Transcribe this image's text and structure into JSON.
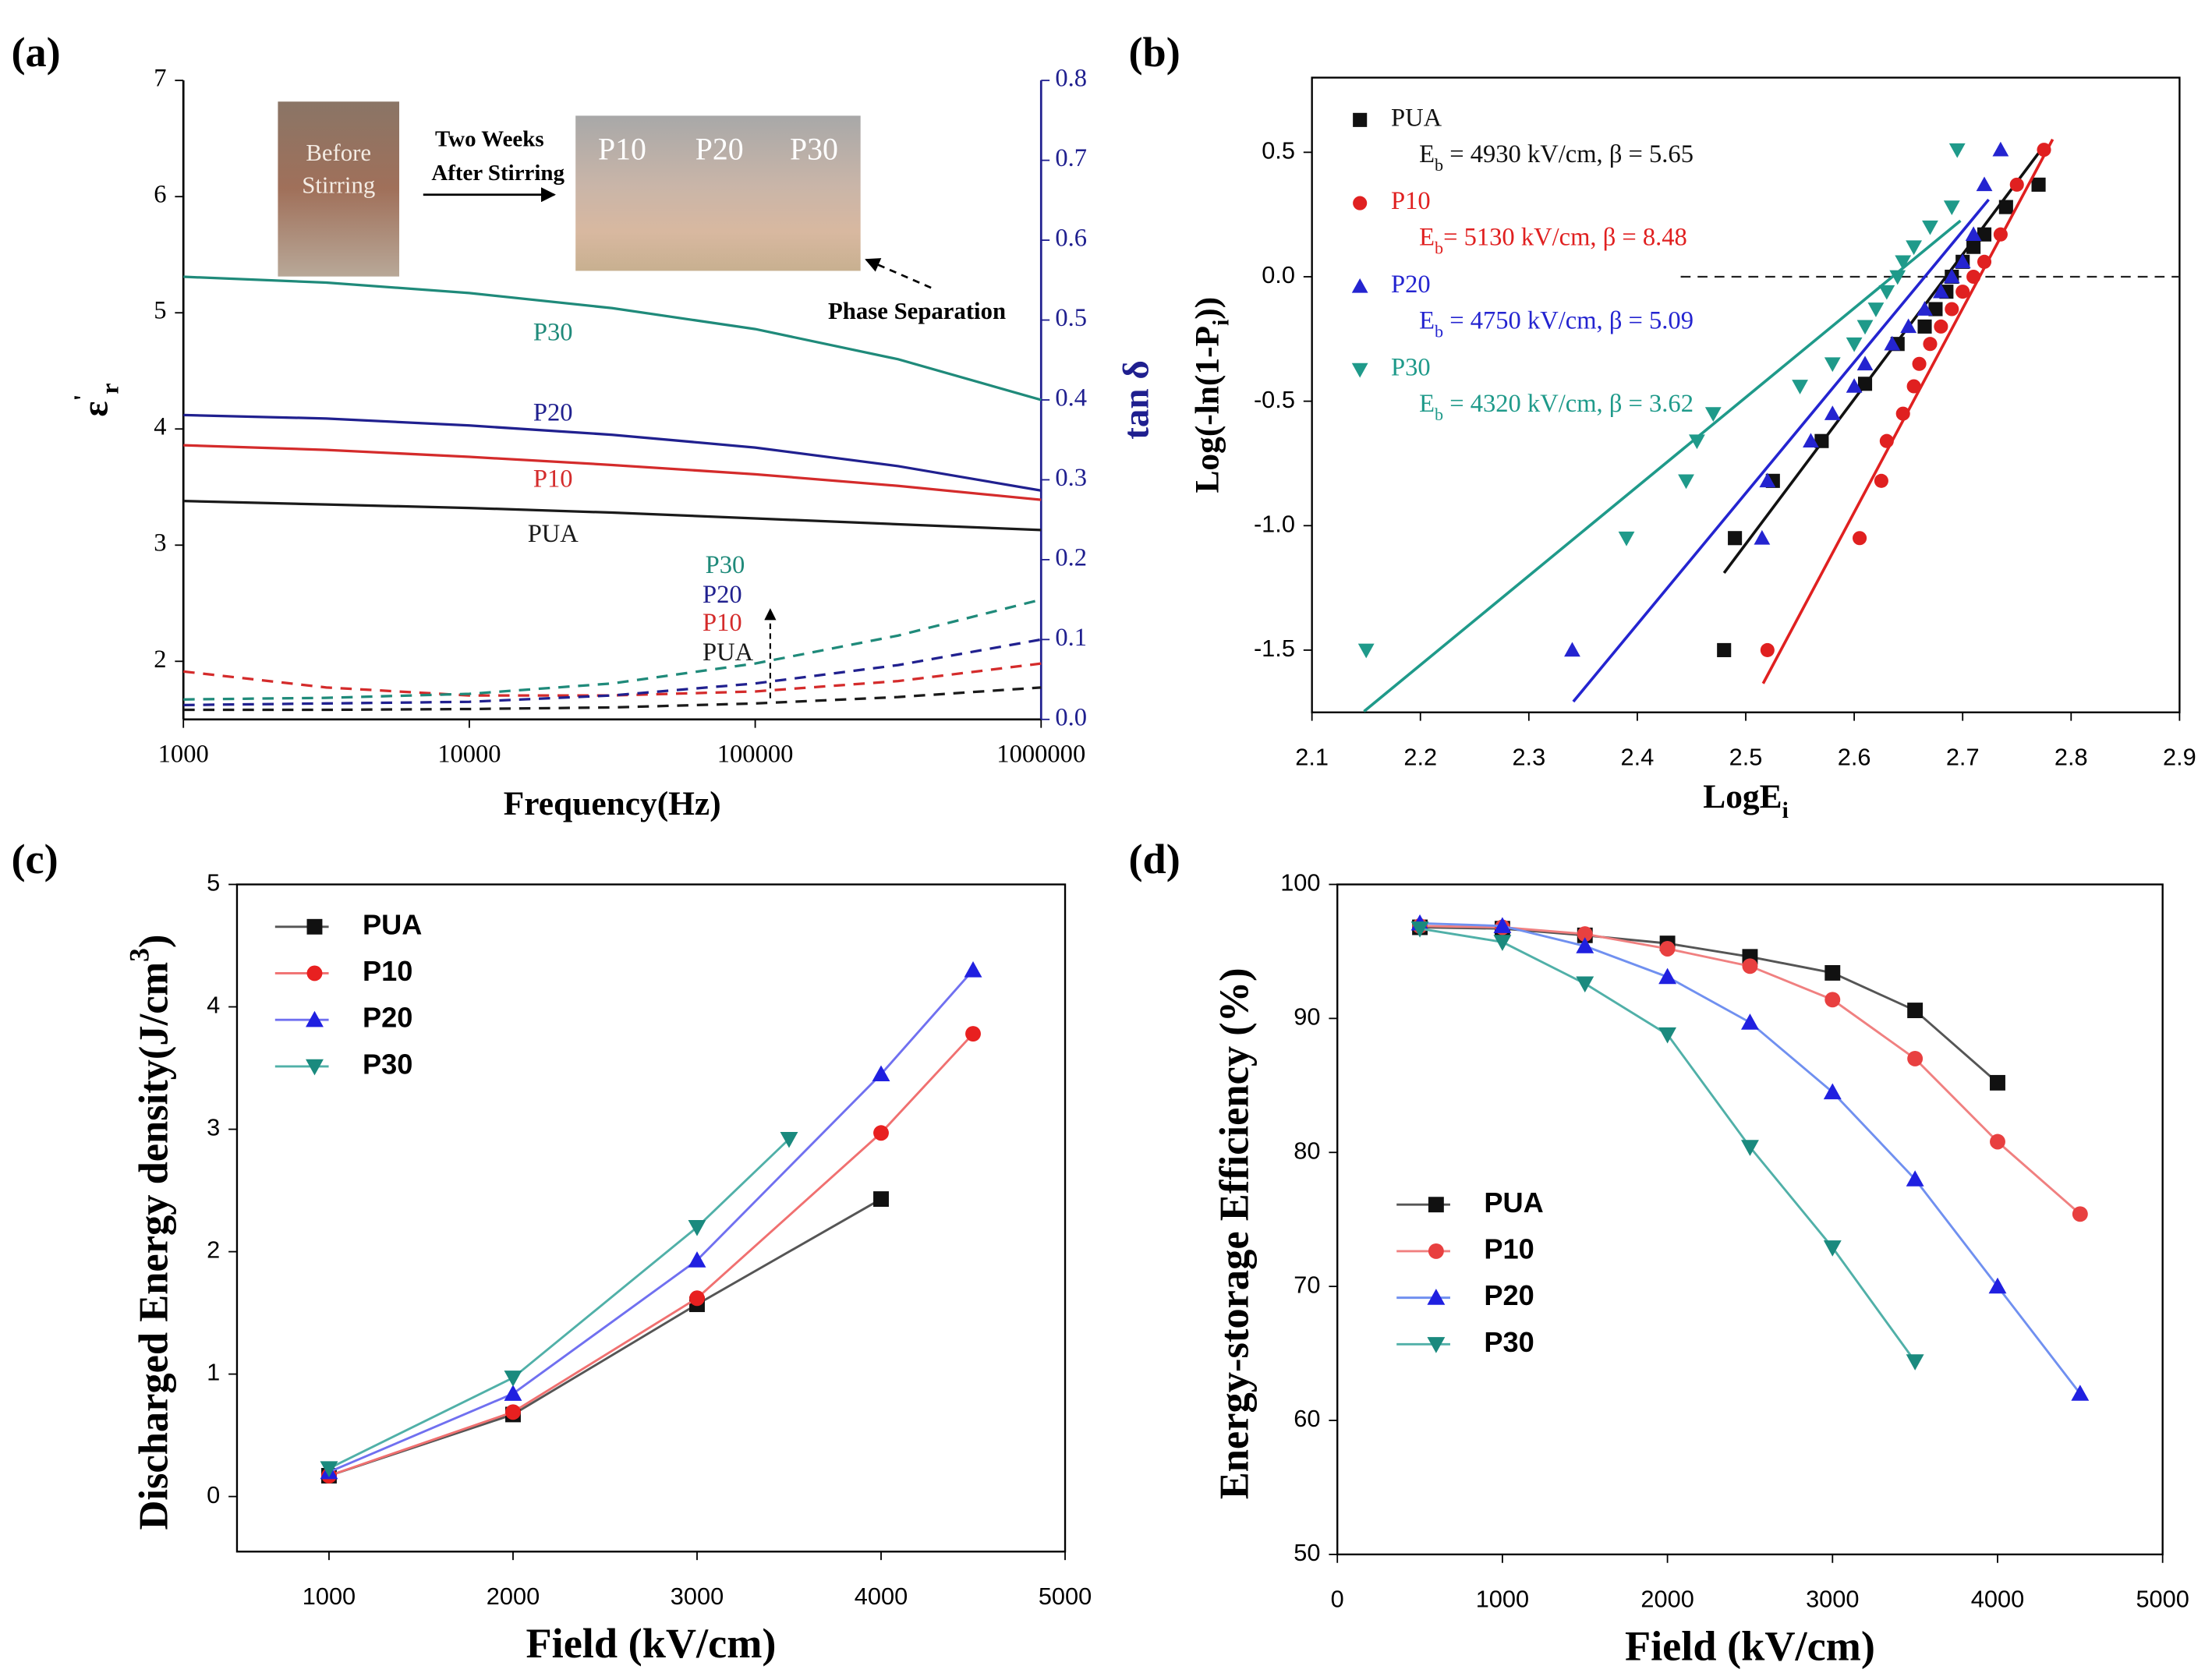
{
  "chart_data": [
    {
      "type": "line",
      "panel": "(a)",
      "log_x": true,
      "xlabel": "Frequency(Hz)",
      "ylabel": [
        {
          "text": "ε"
        },
        {
          "text": "'",
          "style": "super"
        },
        {
          "text": "r",
          "style": "sub"
        }
      ],
      "y2label": "tan δ",
      "y2_color": "#1f1f8f",
      "x": [
        1000,
        3162,
        10000,
        31623,
        100000,
        316228,
        1000000
      ],
      "xlim": [
        1000,
        1000000
      ],
      "xticks": [
        1000,
        10000,
        100000,
        1000000
      ],
      "ylim": [
        1.5,
        7
      ],
      "yticks": [
        2,
        3,
        4,
        5,
        6,
        7
      ],
      "y2lim": [
        0,
        0.8
      ],
      "y2ticks": [
        {
          "value": 0,
          "label": "0.0"
        },
        0.1,
        0.2,
        0.3,
        0.4,
        0.5,
        0.6,
        0.7,
        0.8
      ],
      "series": [
        {
          "name": "PUA",
          "color": "#1a1a1a",
          "values": [
            3.38,
            3.35,
            3.32,
            3.28,
            3.23,
            3.18,
            3.13
          ]
        },
        {
          "name": "P10",
          "color": "#d42b2b",
          "values": [
            3.86,
            3.82,
            3.76,
            3.69,
            3.61,
            3.51,
            3.39
          ]
        },
        {
          "name": "P20",
          "color": "#20208f",
          "values": [
            4.12,
            4.09,
            4.03,
            3.95,
            3.84,
            3.68,
            3.47
          ]
        },
        {
          "name": "P30",
          "color": "#1f8a7a",
          "values": [
            5.31,
            5.26,
            5.17,
            5.04,
            4.86,
            4.6,
            4.25
          ]
        },
        {
          "name": "PUA",
          "color": "#1a1a1a",
          "axis": "y2",
          "dashed": true,
          "values": [
            0.012,
            0.012,
            0.013,
            0.015,
            0.02,
            0.028,
            0.04
          ]
        },
        {
          "name": "P10",
          "color": "#d42b2b",
          "axis": "y2",
          "dashed": true,
          "values": [
            0.06,
            0.04,
            0.03,
            0.03,
            0.035,
            0.048,
            0.07
          ]
        },
        {
          "name": "P20",
          "color": "#20208f",
          "axis": "y2",
          "dashed": true,
          "values": [
            0.018,
            0.02,
            0.022,
            0.03,
            0.045,
            0.068,
            0.1
          ]
        },
        {
          "name": "P30",
          "color": "#1f8a7a",
          "axis": "y2",
          "dashed": true,
          "values": [
            0.025,
            0.027,
            0.032,
            0.045,
            0.07,
            0.105,
            0.15
          ]
        }
      ],
      "photo_labels": {
        "before": [
          "Before",
          "Stirring"
        ],
        "after": [
          "Two Weeks",
          "After Stirring"
        ],
        "samples": [
          "P10",
          "P20",
          "P30"
        ]
      },
      "annotation": "Phase Separation"
    },
    {
      "type": "scatter",
      "panel": "(b)",
      "xlabel": [
        {
          "text": "LogE"
        },
        {
          "text": "i",
          "style": "sub"
        }
      ],
      "ylabel": [
        {
          "text": "Log(-ln(1-P"
        },
        {
          "text": "i",
          "style": "sub"
        },
        {
          "text": "))"
        }
      ],
      "xlim": [
        2.1,
        2.9
      ],
      "xticks": [
        2.1,
        2.2,
        2.3,
        2.4,
        2.5,
        2.6,
        2.7,
        2.8,
        2.9
      ],
      "ylim": [
        -1.75,
        0.8
      ],
      "yticks": [
        -1.5,
        {
          "value": -1,
          "label": "-1.0"
        },
        -0.5,
        {
          "value": 0,
          "label": "0.0"
        },
        0.5
      ],
      "legend": "upper left",
      "reference_line": {
        "y": 0,
        "x": [
          2.44,
          2.9
        ]
      },
      "series": [
        {
          "name": "PUA",
          "color": "#111111",
          "marker": "square",
          "note": [
            {
              "text": "E"
            },
            {
              "text": "b",
              "style": "sub"
            },
            {
              "text": " = 4930 kV/cm, β = 5.65"
            }
          ],
          "x": [
            2.48,
            2.49,
            2.525,
            2.57,
            2.61,
            2.64,
            2.665,
            2.675,
            2.685,
            2.69,
            2.7,
            2.71,
            2.72,
            2.74,
            2.77
          ],
          "values": [
            -1.5,
            -1.05,
            -0.82,
            -0.66,
            -0.43,
            -0.27,
            -0.2,
            -0.13,
            -0.06,
            0,
            0.06,
            0.12,
            0.17,
            0.28,
            0.37
          ],
          "fit_x": [
            2.48,
            2.774
          ],
          "fit_y": [
            -1.19,
            0.52
          ]
        },
        {
          "name": "P10",
          "color": "#e02020",
          "marker": "circle",
          "note": [
            {
              "text": "E"
            },
            {
              "text": "b",
              "style": "sub"
            },
            {
              "text": "= 5130 kV/cm, β = 8.48"
            }
          ],
          "x": [
            2.52,
            2.605,
            2.625,
            2.63,
            2.645,
            2.655,
            2.66,
            2.67,
            2.68,
            2.69,
            2.7,
            2.71,
            2.72,
            2.735,
            2.75,
            2.775
          ],
          "values": [
            -1.5,
            -1.05,
            -0.82,
            -0.66,
            -0.55,
            -0.44,
            -0.35,
            -0.27,
            -0.2,
            -0.13,
            -0.06,
            0,
            0.06,
            0.17,
            0.37,
            0.51
          ],
          "fit_x": [
            2.516,
            2.783
          ],
          "fit_y": [
            -1.634,
            0.552
          ]
        },
        {
          "name": "P20",
          "color": "#2424d0",
          "marker": "triangle",
          "note": [
            {
              "text": "E"
            },
            {
              "text": "b",
              "style": "sub"
            },
            {
              "text": " = 4750 kV/cm, β = 5.09"
            }
          ],
          "x": [
            2.34,
            2.515,
            2.52,
            2.56,
            2.58,
            2.6,
            2.61,
            2.635,
            2.65,
            2.665,
            2.68,
            2.69,
            2.7,
            2.71,
            2.72,
            2.735
          ],
          "values": [
            -1.5,
            -1.05,
            -0.82,
            -0.66,
            -0.55,
            -0.44,
            -0.35,
            -0.27,
            -0.2,
            -0.13,
            -0.06,
            0,
            0.06,
            0.17,
            0.37,
            0.51
          ],
          "fit_x": [
            2.341,
            2.724
          ],
          "fit_y": [
            -1.707,
            0.31
          ]
        },
        {
          "name": "P30",
          "color": "#1f9a8a",
          "marker": "triangle-down",
          "note": [
            {
              "text": "E"
            },
            {
              "text": "b",
              "style": "sub"
            },
            {
              "text": " = 4320 kV/cm, β = 3.62"
            }
          ],
          "x": [
            2.15,
            2.39,
            2.445,
            2.455,
            2.47,
            2.55,
            2.58,
            2.6,
            2.61,
            2.62,
            2.63,
            2.64,
            2.645,
            2.655,
            2.67,
            2.69,
            2.695
          ],
          "values": [
            -1.5,
            -1.05,
            -0.82,
            -0.66,
            -0.55,
            -0.44,
            -0.35,
            -0.27,
            -0.2,
            -0.13,
            -0.06,
            0,
            0.06,
            0.12,
            0.2,
            0.28,
            0.51
          ],
          "fit_x": [
            2.148,
            2.698
          ],
          "fit_y": [
            -1.746,
            0.225
          ]
        }
      ]
    },
    {
      "type": "line",
      "panel": "(c)",
      "xlabel": "Field (kV/cm)",
      "ylabel": [
        {
          "text": "Discharged Energy density(J/cm"
        },
        {
          "text": "3",
          "style": "super"
        },
        {
          "text": ")"
        }
      ],
      "xlim": [
        500,
        5000
      ],
      "xticks": [
        1000,
        2000,
        3000,
        4000,
        5000
      ],
      "ylim": [
        -0.45,
        5
      ],
      "yticks": [
        0,
        1,
        2,
        3,
        4,
        5
      ],
      "legend": "upper left",
      "series": [
        {
          "name": "PUA",
          "color": "#111111",
          "line_color": "#555555",
          "marker": "square",
          "x": [
            1000,
            2000,
            3000,
            4000
          ],
          "values": [
            0.17,
            0.67,
            1.57,
            2.43
          ]
        },
        {
          "name": "P10",
          "color": "#e82020",
          "line_color": "#f07070",
          "marker": "circle",
          "x": [
            1000,
            2000,
            3000,
            4000,
            4500
          ],
          "values": [
            0.17,
            0.69,
            1.62,
            2.97,
            3.78
          ]
        },
        {
          "name": "P20",
          "color": "#2020e0",
          "line_color": "#7070f0",
          "marker": "triangle",
          "x": [
            1000,
            2000,
            3000,
            4000,
            4500
          ],
          "values": [
            0.2,
            0.84,
            1.93,
            3.45,
            4.3
          ]
        },
        {
          "name": "P30",
          "color": "#1a8a7e",
          "line_color": "#50b0a8",
          "marker": "triangle-down",
          "x": [
            1000,
            2000,
            3000,
            3500
          ],
          "values": [
            0.23,
            0.97,
            2.2,
            2.92
          ]
        }
      ]
    },
    {
      "type": "line",
      "panel": "(d)",
      "xlabel": "Field (kV/cm)",
      "ylabel": "Energy-storage Efficiency (%)",
      "xlim": [
        0,
        5000
      ],
      "xticks": [
        0,
        1000,
        2000,
        3000,
        4000,
        5000
      ],
      "ylim": [
        50,
        100
      ],
      "yticks": [
        50,
        60,
        70,
        80,
        90,
        100
      ],
      "legend": "lower left",
      "series": [
        {
          "name": "PUA",
          "color": "#111111",
          "line_color": "#555555",
          "marker": "square",
          "x": [
            500,
            1000,
            1500,
            2000,
            2500,
            3000,
            3500,
            4000
          ],
          "values": [
            96.8,
            96.7,
            96.2,
            95.6,
            94.6,
            93.4,
            90.6,
            85.2
          ]
        },
        {
          "name": "P10",
          "color": "#e84040",
          "line_color": "#f08080",
          "marker": "circle",
          "x": [
            500,
            1000,
            1500,
            2000,
            2500,
            3000,
            3500,
            4000,
            4500
          ],
          "values": [
            96.9,
            96.8,
            96.3,
            95.2,
            93.9,
            91.4,
            87,
            80.8,
            75.4
          ]
        },
        {
          "name": "P20",
          "color": "#2020e0",
          "line_color": "#7090f0",
          "marker": "triangle",
          "x": [
            500,
            1000,
            1500,
            2000,
            2500,
            3000,
            3500,
            4000,
            4500
          ],
          "values": [
            97.1,
            96.9,
            95.4,
            93.1,
            89.7,
            84.5,
            78,
            70,
            62
          ]
        },
        {
          "name": "P30",
          "color": "#1a8a7e",
          "line_color": "#50b0a8",
          "marker": "triangle-down",
          "x": [
            500,
            1000,
            1500,
            2000,
            2500,
            3000,
            3500
          ],
          "values": [
            96.7,
            95.7,
            92.6,
            88.8,
            80.4,
            72.9,
            64.4
          ]
        }
      ]
    }
  ]
}
